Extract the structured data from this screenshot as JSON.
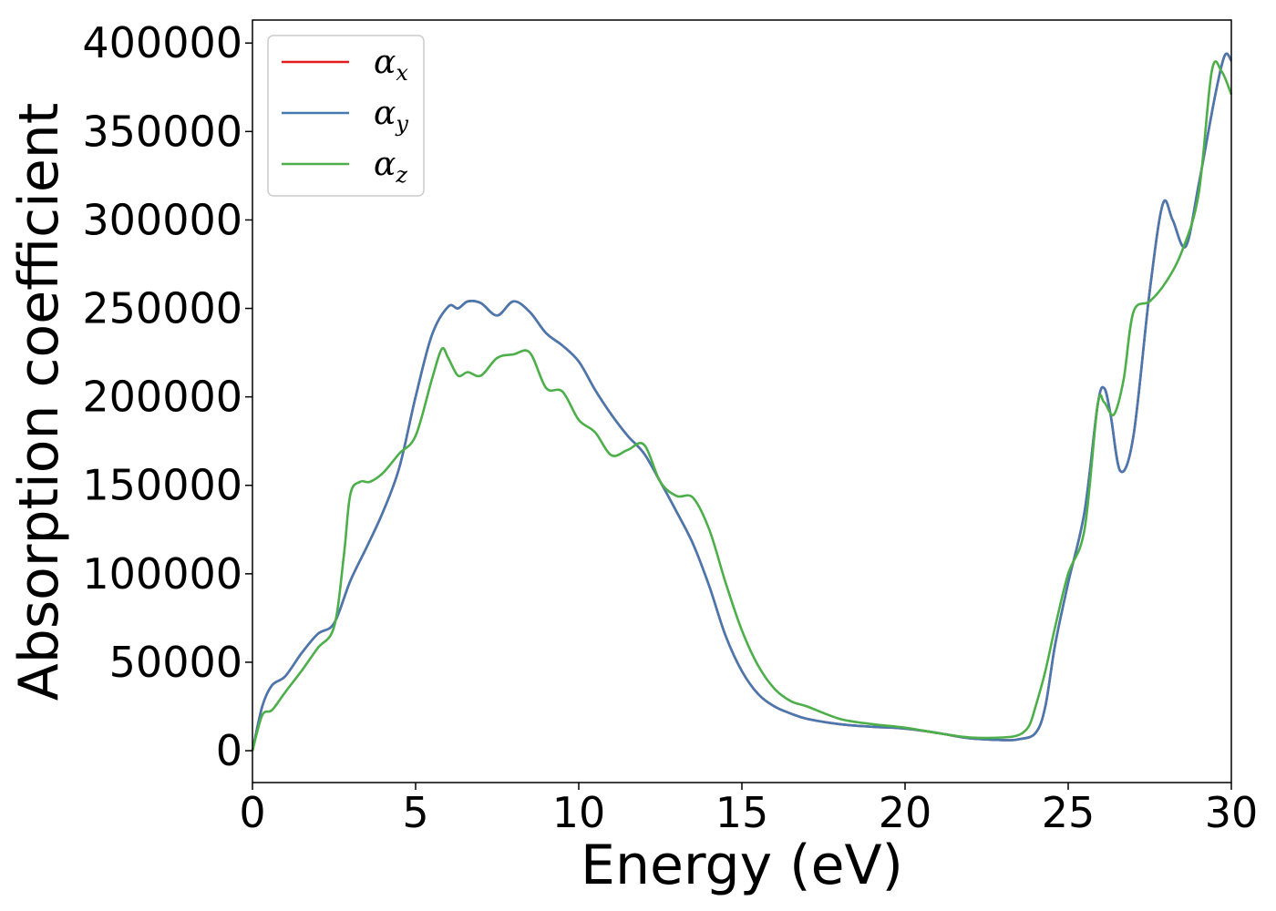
{
  "chart_data": {
    "type": "line",
    "title": "",
    "xlabel": "Energy (eV)",
    "ylabel": "Absorption coefficient",
    "xlim": [
      0,
      30
    ],
    "ylim": [
      -18000,
      413000
    ],
    "xticks": [
      0,
      5,
      10,
      15,
      20,
      25,
      30
    ],
    "yticks": [
      0,
      50000,
      100000,
      150000,
      200000,
      250000,
      300000,
      350000,
      400000
    ],
    "grid": false,
    "legend_placement": "top-left",
    "series": [
      {
        "name": "α",
        "subscript": "x",
        "color": "#e41a1c",
        "x": [
          0,
          0.3,
          0.6,
          1.0,
          1.5,
          2.0,
          2.5,
          3.0,
          3.5,
          4.0,
          4.5,
          5.0,
          5.5,
          6.0,
          6.3,
          6.6,
          7.0,
          7.5,
          8.0,
          8.5,
          9.0,
          9.5,
          10.0,
          10.5,
          11.0,
          11.5,
          12.0,
          12.5,
          13.0,
          13.5,
          14.0,
          14.5,
          15.0,
          15.5,
          16.0,
          16.5,
          17.0,
          18.0,
          19.0,
          20.0,
          21.0,
          22.0,
          23.0,
          23.5,
          24.0,
          24.3,
          24.6,
          25.0,
          25.5,
          25.9,
          26.1,
          26.3,
          26.6,
          27.0,
          27.5,
          27.9,
          28.2,
          28.6,
          29.0,
          29.5,
          29.8,
          30.0
        ],
        "values": [
          0,
          25000,
          37000,
          42000,
          55000,
          66000,
          72000,
          96000,
          115000,
          135000,
          160000,
          200000,
          235000,
          251000,
          250000,
          254000,
          253000,
          246000,
          254000,
          248000,
          236000,
          229000,
          220000,
          204000,
          190000,
          178000,
          168000,
          152000,
          135000,
          117000,
          93000,
          65000,
          45000,
          32000,
          25000,
          21000,
          18000,
          15000,
          13500,
          12500,
          10000,
          7000,
          6000,
          6500,
          10000,
          25000,
          60000,
          95000,
          135000,
          195000,
          205000,
          190000,
          158000,
          178000,
          260000,
          309000,
          300000,
          285000,
          320000,
          370000,
          393000,
          390000
        ]
      },
      {
        "name": "α",
        "subscript": "y",
        "color": "#4779b0",
        "x": [
          0,
          0.3,
          0.6,
          1.0,
          1.5,
          2.0,
          2.5,
          3.0,
          3.5,
          4.0,
          4.5,
          5.0,
          5.5,
          6.0,
          6.3,
          6.6,
          7.0,
          7.5,
          8.0,
          8.5,
          9.0,
          9.5,
          10.0,
          10.5,
          11.0,
          11.5,
          12.0,
          12.5,
          13.0,
          13.5,
          14.0,
          14.5,
          15.0,
          15.5,
          16.0,
          16.5,
          17.0,
          18.0,
          19.0,
          20.0,
          21.0,
          22.0,
          23.0,
          23.5,
          24.0,
          24.3,
          24.6,
          25.0,
          25.5,
          25.9,
          26.1,
          26.3,
          26.6,
          27.0,
          27.5,
          27.9,
          28.2,
          28.6,
          29.0,
          29.5,
          29.8,
          30.0
        ],
        "values": [
          0,
          25000,
          37000,
          42000,
          55000,
          66000,
          72000,
          96000,
          115000,
          135000,
          160000,
          200000,
          235000,
          251000,
          250000,
          254000,
          253000,
          246000,
          254000,
          248000,
          236000,
          229000,
          220000,
          204000,
          190000,
          178000,
          168000,
          152000,
          135000,
          117000,
          93000,
          65000,
          45000,
          32000,
          25000,
          21000,
          18000,
          15000,
          13500,
          12500,
          10000,
          7000,
          6000,
          6500,
          10000,
          25000,
          60000,
          95000,
          135000,
          195000,
          205000,
          190000,
          158000,
          178000,
          260000,
          309000,
          300000,
          285000,
          320000,
          370000,
          393000,
          390000
        ]
      },
      {
        "name": "α",
        "subscript": "z",
        "color": "#4daf4a",
        "x": [
          0,
          0.3,
          0.6,
          1.0,
          1.5,
          2.0,
          2.5,
          2.8,
          3.0,
          3.3,
          3.6,
          4.0,
          4.5,
          5.0,
          5.5,
          5.8,
          6.0,
          6.3,
          6.6,
          7.0,
          7.5,
          8.0,
          8.5,
          9.0,
          9.5,
          10.0,
          10.5,
          11.0,
          11.5,
          12.0,
          12.5,
          13.0,
          13.5,
          14.0,
          14.5,
          15.0,
          15.5,
          16.0,
          16.5,
          17.0,
          18.0,
          19.0,
          20.0,
          21.0,
          22.0,
          23.0,
          23.5,
          23.8,
          24.0,
          24.3,
          24.6,
          25.0,
          25.5,
          25.9,
          26.1,
          26.4,
          26.7,
          27.0,
          27.5,
          28.0,
          28.5,
          29.0,
          29.4,
          29.7,
          30.0
        ],
        "values": [
          0,
          20000,
          23000,
          33000,
          45000,
          58000,
          70000,
          110000,
          145000,
          152000,
          152000,
          157000,
          168000,
          178000,
          210000,
          227000,
          222000,
          212000,
          214000,
          212000,
          222000,
          224000,
          225000,
          205000,
          203000,
          187000,
          180000,
          167000,
          170000,
          173000,
          152000,
          144000,
          143000,
          125000,
          95000,
          68000,
          48000,
          35000,
          28000,
          25000,
          18000,
          15000,
          13000,
          10000,
          7500,
          7500,
          9000,
          14000,
          25000,
          45000,
          70000,
          100000,
          125000,
          195000,
          197000,
          190000,
          210000,
          248000,
          254000,
          265000,
          283000,
          315000,
          384000,
          384000,
          371000
        ]
      }
    ]
  }
}
